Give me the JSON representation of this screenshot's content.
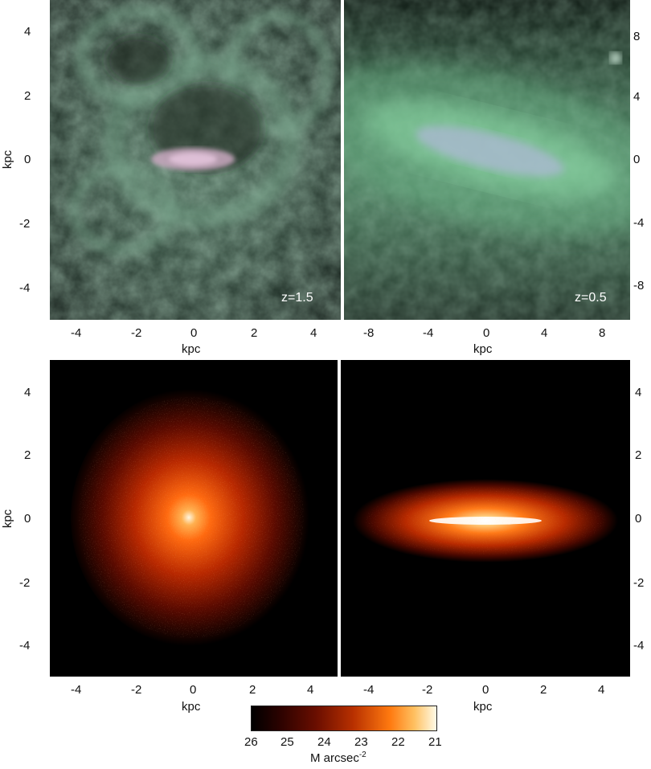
{
  "panels": {
    "top_left": {
      "redshift_label": "z=1.5",
      "x_ticks": [
        "-4",
        "-2",
        "0",
        "2",
        "4"
      ],
      "y_ticks": [
        "4",
        "2",
        "0",
        "-2",
        "-4"
      ],
      "x_label": "kpc",
      "y_label": "kpc"
    },
    "top_right": {
      "redshift_label": "z=0.5",
      "x_ticks": [
        "-8",
        "-4",
        "0",
        "4",
        "8"
      ],
      "y_ticks_right": [
        "8",
        "4",
        "0",
        "-4",
        "-8"
      ],
      "x_label": "kpc"
    },
    "bottom_left": {
      "x_ticks": [
        "-4",
        "-2",
        "0",
        "2",
        "4"
      ],
      "y_ticks": [
        "4",
        "2",
        "0",
        "-2",
        "-4"
      ],
      "x_label": "kpc",
      "y_label": "kpc"
    },
    "bottom_right": {
      "x_ticks": [
        "-4",
        "-2",
        "0",
        "2",
        "4"
      ],
      "y_ticks_right": [
        "4",
        "2",
        "0",
        "-2",
        "-4"
      ],
      "x_label": "kpc"
    }
  },
  "colorbar": {
    "ticks": [
      "26",
      "25",
      "24",
      "23",
      "22",
      "21"
    ],
    "label_main": "M arcsec",
    "label_sup": "-2"
  },
  "colors": {
    "gas_dark": "#1e2a24",
    "gas_light": "#8fd4a8",
    "star_core": "#fff6e0",
    "star_mid": "#ff6a10",
    "star_outer": "#5a0a00"
  }
}
